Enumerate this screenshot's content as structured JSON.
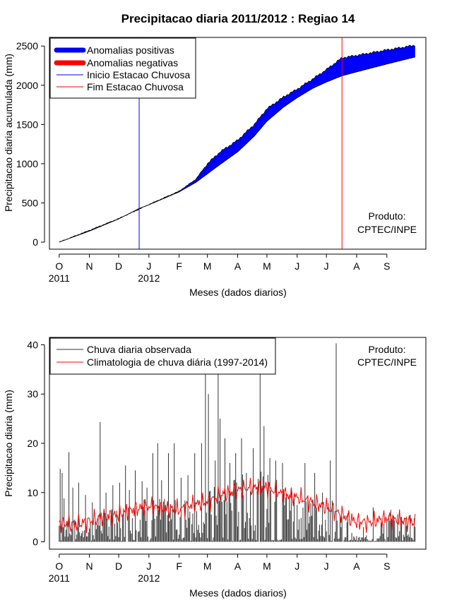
{
  "title": "Precipitacao diaria 2011/2012 : Regiao 14",
  "months": [
    "O",
    "N",
    "D",
    "J",
    "F",
    "M",
    "A",
    "M",
    "J",
    "J",
    "A",
    "S"
  ],
  "month_days": [
    0,
    31,
    61,
    92,
    123,
    152,
    183,
    213,
    244,
    274,
    305,
    336
  ],
  "year_labels": [
    {
      "label": "2011",
      "day": 0
    },
    {
      "label": "2012",
      "day": 92
    }
  ],
  "xlabel": "Meses (dados diarios)",
  "produto": {
    "line1": "Produto:",
    "line2": "CPTEC/INPE"
  },
  "colors": {
    "positive": "#0000ff",
    "negative": "#ff0000",
    "start": "#0000ff",
    "end": "#ff0000",
    "observed": "#333333",
    "clim": "#ff0000"
  },
  "chart_data": [
    {
      "type": "area",
      "ylabel": "Precipitacao diaria acumulada (mm)",
      "xlim": [
        -10,
        376
      ],
      "ylim": [
        -90,
        2610
      ],
      "yticks": [
        0,
        500,
        1000,
        1500,
        2000,
        2500
      ],
      "start_day": 82,
      "end_day": 290,
      "legend": [
        "Anomalias positivas",
        "Anomalias negativas",
        "Inicio Estacao Chuvosa",
        "Fim Estacao Chuvosa"
      ],
      "observed_cumulative": {
        "days": [
          0,
          31,
          61,
          82,
          92,
          123,
          140,
          152,
          165,
          183,
          200,
          213,
          230,
          244,
          260,
          274,
          290,
          305,
          336,
          365
        ],
        "values": [
          0,
          150,
          300,
          420,
          480,
          650,
          800,
          1000,
          1150,
          1300,
          1500,
          1700,
          1850,
          1950,
          2080,
          2200,
          2350,
          2380,
          2450,
          2510
        ]
      },
      "climatology_cumulative": {
        "days": [
          0,
          31,
          61,
          82,
          92,
          123,
          140,
          152,
          165,
          183,
          200,
          213,
          230,
          244,
          260,
          274,
          290,
          305,
          336,
          365
        ],
        "values": [
          0,
          140,
          295,
          430,
          475,
          640,
          760,
          870,
          990,
          1150,
          1350,
          1540,
          1720,
          1840,
          1960,
          2040,
          2120,
          2170,
          2270,
          2360
        ]
      }
    },
    {
      "type": "line",
      "ylabel": "Precipitacao diaria (mm)",
      "xlim": [
        -10,
        376
      ],
      "ylim": [
        -1.5,
        41.5
      ],
      "yticks": [
        0,
        10,
        20,
        30,
        40
      ],
      "legend": [
        "Chuva diaria observada",
        "Climatologia de chuva diária (1997-2014)"
      ],
      "observed_peaks": [
        {
          "day": 1,
          "value": 14.8
        },
        {
          "day": 3,
          "value": 14.0
        },
        {
          "day": 5,
          "value": 8.8
        },
        {
          "day": 10,
          "value": 18.2
        },
        {
          "day": 14,
          "value": 11.0
        },
        {
          "day": 20,
          "value": 12.0
        },
        {
          "day": 27,
          "value": 9.5
        },
        {
          "day": 34,
          "value": 8.0
        },
        {
          "day": 42,
          "value": 24.3
        },
        {
          "day": 48,
          "value": 10.0
        },
        {
          "day": 55,
          "value": 11.5
        },
        {
          "day": 62,
          "value": 12.0
        },
        {
          "day": 68,
          "value": 15.5
        },
        {
          "day": 72,
          "value": 10.5
        },
        {
          "day": 78,
          "value": 14.5
        },
        {
          "day": 85,
          "value": 12.3
        },
        {
          "day": 90,
          "value": 11.0
        },
        {
          "day": 96,
          "value": 18.0
        },
        {
          "day": 101,
          "value": 20.0
        },
        {
          "day": 105,
          "value": 12.5
        },
        {
          "day": 112,
          "value": 18.0
        },
        {
          "day": 118,
          "value": 20.0
        },
        {
          "day": 125,
          "value": 13.0
        },
        {
          "day": 132,
          "value": 13.5
        },
        {
          "day": 139,
          "value": 18.0
        },
        {
          "day": 146,
          "value": 20.0
        },
        {
          "day": 150,
          "value": 34.0
        },
        {
          "day": 153,
          "value": 30.0
        },
        {
          "day": 160,
          "value": 16.5
        },
        {
          "day": 163,
          "value": 34.0
        },
        {
          "day": 165,
          "value": 25.0
        },
        {
          "day": 170,
          "value": 21.0
        },
        {
          "day": 175,
          "value": 16.0
        },
        {
          "day": 181,
          "value": 18.0
        },
        {
          "day": 187,
          "value": 21.0
        },
        {
          "day": 192,
          "value": 14.0
        },
        {
          "day": 199,
          "value": 19.0
        },
        {
          "day": 206,
          "value": 34.0
        },
        {
          "day": 210,
          "value": 23.5
        },
        {
          "day": 216,
          "value": 17.0
        },
        {
          "day": 222,
          "value": 16.5
        },
        {
          "day": 229,
          "value": 16.0
        },
        {
          "day": 236,
          "value": 9.0
        },
        {
          "day": 244,
          "value": 7.5
        },
        {
          "day": 252,
          "value": 16.0
        },
        {
          "day": 262,
          "value": 14.0
        },
        {
          "day": 270,
          "value": 10.0
        },
        {
          "day": 278,
          "value": 16.5
        },
        {
          "day": 284,
          "value": 40.3
        },
        {
          "day": 295,
          "value": 4.0
        },
        {
          "day": 300,
          "value": 1.8
        },
        {
          "day": 312,
          "value": 3.0
        },
        {
          "day": 322,
          "value": 7.0
        },
        {
          "day": 330,
          "value": 4.0
        },
        {
          "day": 340,
          "value": 6.5
        },
        {
          "day": 350,
          "value": 5.0
        },
        {
          "day": 360,
          "value": 5.5
        }
      ],
      "climatology": {
        "days": [
          0,
          15,
          31,
          45,
          61,
          75,
          92,
          105,
          123,
          135,
          152,
          165,
          183,
          195,
          213,
          225,
          244,
          260,
          274,
          290,
          305,
          320,
          336,
          350,
          365
        ],
        "values": [
          4.0,
          3.5,
          4.2,
          5.0,
          5.5,
          6.5,
          7.2,
          6.8,
          6.5,
          7.5,
          8.0,
          9.5,
          10.5,
          11.0,
          11.0,
          10.0,
          9.0,
          8.0,
          7.0,
          5.5,
          4.0,
          4.0,
          4.8,
          4.2,
          4.0
        ]
      }
    }
  ]
}
